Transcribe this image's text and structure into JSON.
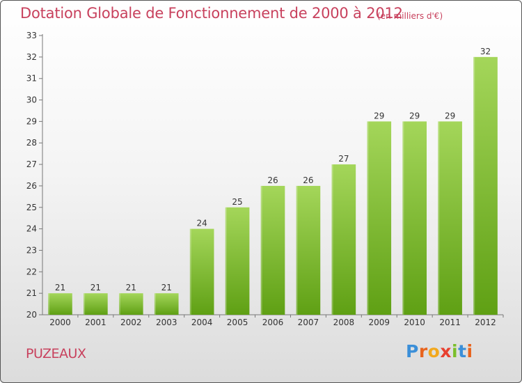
{
  "title": "Dotation Globale de Fonctionnement de 2000 à 2012",
  "unit_note": "(en milliers d'€)",
  "commune": "PUZEAUX",
  "logo": {
    "text": "Proxiti",
    "letter_colors": [
      "#3b8fd8",
      "#e8641e",
      "#f2a81d",
      "#e8402f",
      "#7bbf2b",
      "#3b8fd8",
      "#e8641e"
    ]
  },
  "colors": {
    "bar_top": "#a4d65a",
    "bar_bottom": "#5fa014",
    "title": "#c8415d",
    "axis_text": "#333333"
  },
  "chart_data": {
    "type": "bar",
    "categories": [
      "2000",
      "2001",
      "2002",
      "2003",
      "2004",
      "2005",
      "2006",
      "2007",
      "2008",
      "2009",
      "2010",
      "2011",
      "2012"
    ],
    "values": [
      21,
      21,
      21,
      21,
      24,
      25,
      26,
      26,
      27,
      29,
      29,
      29,
      32
    ],
    "ylim": [
      20,
      33
    ],
    "yticks": [
      20,
      21,
      22,
      23,
      24,
      25,
      26,
      27,
      28,
      29,
      30,
      31,
      32,
      33
    ],
    "grid": false,
    "data_labels": true
  }
}
